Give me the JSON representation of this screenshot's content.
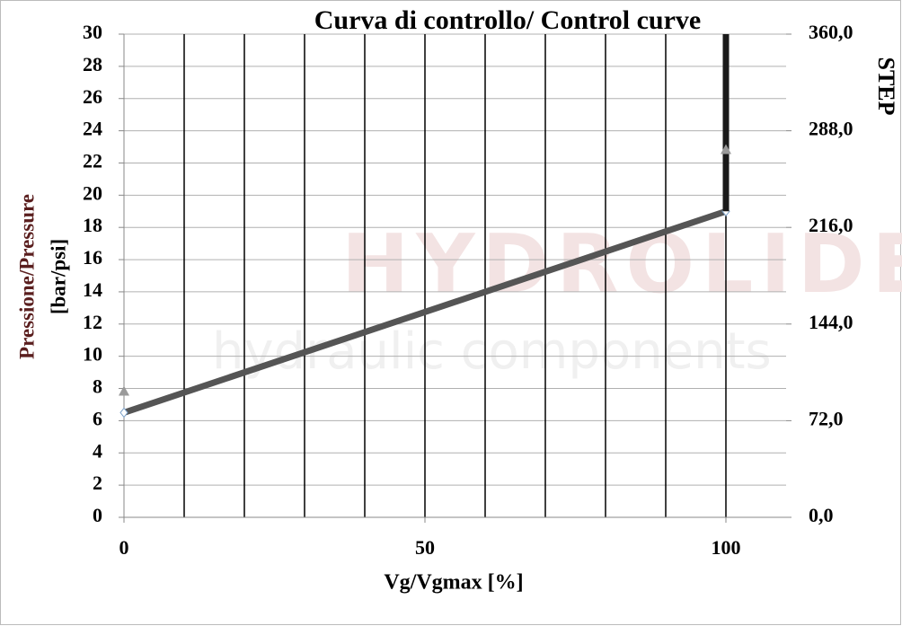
{
  "chart_data": {
    "type": "line",
    "title": "Curva di controllo/ Control curve",
    "xlabel": "Vg/Vgmax  [%]",
    "ylabel": [
      "Pressione/Pressure",
      "[bar/psi]"
    ],
    "y2label": "STEP",
    "watermark": [
      "HYDROLIDER",
      "hydraulic components"
    ],
    "xlim": [
      0,
      110
    ],
    "xticks": [
      0,
      50,
      100
    ],
    "xgrid": [
      10,
      20,
      30,
      40,
      50,
      60,
      70,
      80,
      90,
      100
    ],
    "ylim": [
      0,
      30
    ],
    "yticks": [
      0,
      2,
      4,
      6,
      8,
      10,
      12,
      14,
      16,
      18,
      20,
      22,
      24,
      26,
      28,
      30
    ],
    "y2lim": [
      0,
      360
    ],
    "y2ticks": [
      {
        "value": 0,
        "label": "0,0"
      },
      {
        "value": 72,
        "label": "72,0"
      },
      {
        "value": 144,
        "label": "144,0"
      },
      {
        "value": 216,
        "label": "216,0"
      },
      {
        "value": 288,
        "label": "288,0"
      },
      {
        "value": 360,
        "label": "360,0"
      }
    ],
    "grid": true,
    "series": [
      {
        "x": [
          0,
          100
        ],
        "values": [
          6.5,
          19
        ],
        "color": "#555555",
        "marker": "diamond"
      },
      {
        "x": [
          100,
          100
        ],
        "values": [
          19,
          30
        ],
        "color": "#1a1a1a"
      },
      {
        "x": [
          0,
          100
        ],
        "values": [
          94,
          274
        ],
        "axis": "y2",
        "color": "#9a9a9a",
        "marker": "triangle",
        "line": false
      }
    ]
  }
}
